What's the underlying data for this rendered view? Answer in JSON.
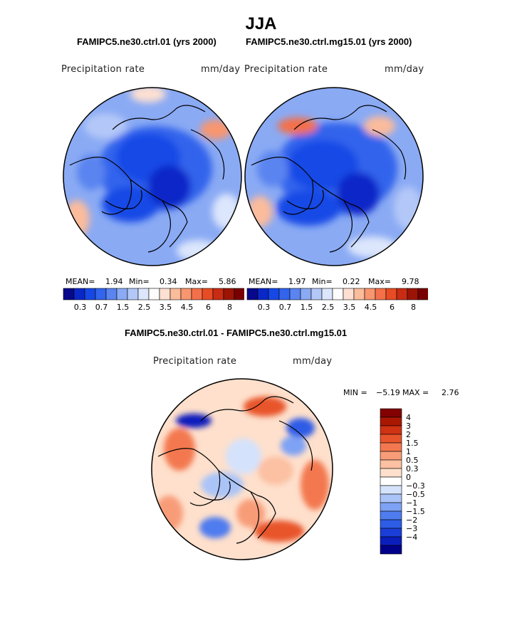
{
  "main_title": "JJA",
  "colors": {
    "abs_palette": [
      "#08088c",
      "#0a28c8",
      "#1648e6",
      "#3264ec",
      "#5a84f0",
      "#8aaaf4",
      "#b4c8f8",
      "#dce6fc",
      "#fcfcfc",
      "#fde0d2",
      "#fbbc9c",
      "#f89670",
      "#f4704a",
      "#e84c24",
      "#c82c12",
      "#9c1406",
      "#780000"
    ],
    "diff_palette": [
      "#00008a",
      "#0a1ebc",
      "#1a3ed6",
      "#2d5ce6",
      "#4f7cef",
      "#7ea2f4",
      "#aac4f8",
      "#d4e2fc",
      "#ffffff",
      "#fee0cc",
      "#fcc0a2",
      "#f89c78",
      "#f37850",
      "#e8542c",
      "#d03214",
      "#aa1804",
      "#820000"
    ]
  },
  "chart_data": [
    {
      "type": "heatmap",
      "projection": "polar-stereographic-north",
      "title": "FAMIPC5.ne30.ctrl.01 (yrs 2000)",
      "variable": "Precipitation rate",
      "units": "mm/day",
      "stats": {
        "mean_label": "MEAN=",
        "mean": "1.94",
        "min_label": "Min=",
        "min": "0.34",
        "max_label": "Max=",
        "max": "5.86"
      },
      "colorbar_levels": [
        0.2,
        0.3,
        0.5,
        0.7,
        1,
        1.5,
        2,
        2.5,
        3,
        3.5,
        4,
        4.5,
        5,
        6,
        7,
        8
      ],
      "colorbar_labels": [
        "0.3",
        "0.7",
        "1.5",
        "2.5",
        "3.5",
        "4.5",
        "6",
        "8"
      ]
    },
    {
      "type": "heatmap",
      "projection": "polar-stereographic-north",
      "title": "FAMIPC5.ne30.ctrl.mg15.01 (yrs 2000)",
      "variable": "Precipitation rate",
      "units": "mm/day",
      "stats": {
        "mean_label": "MEAN=",
        "mean": "1.97",
        "min_label": "Min=",
        "min": "0.22",
        "max_label": "Max=",
        "max": "9.78"
      },
      "colorbar_levels": [
        0.2,
        0.3,
        0.5,
        0.7,
        1,
        1.5,
        2,
        2.5,
        3,
        3.5,
        4,
        4.5,
        5,
        6,
        7,
        8
      ],
      "colorbar_labels": [
        "0.3",
        "0.7",
        "1.5",
        "2.5",
        "3.5",
        "4.5",
        "6",
        "8"
      ]
    },
    {
      "type": "heatmap",
      "projection": "polar-stereographic-north",
      "title": "FAMIPC5.ne30.ctrl.01 - FAMIPC5.ne30.ctrl.mg15.01",
      "variable": "Precipitation rate",
      "units": "mm/day",
      "stats": {
        "min_label": "MIN =",
        "min": "−5.19",
        "max_label": "MAX =",
        "max": "2.76"
      },
      "colorbar_levels": [
        -5,
        -4,
        -3,
        -2,
        -1.5,
        -1,
        -0.5,
        -0.3,
        0,
        0.3,
        0.5,
        1,
        1.5,
        2,
        3,
        4,
        5
      ],
      "colorbar_labels": [
        "4",
        "3",
        "2",
        "1.5",
        "1",
        "0.5",
        "0.3",
        "0",
        "−0.3",
        "−0.5",
        "−1",
        "−1.5",
        "−2",
        "−3",
        "−4"
      ]
    }
  ]
}
